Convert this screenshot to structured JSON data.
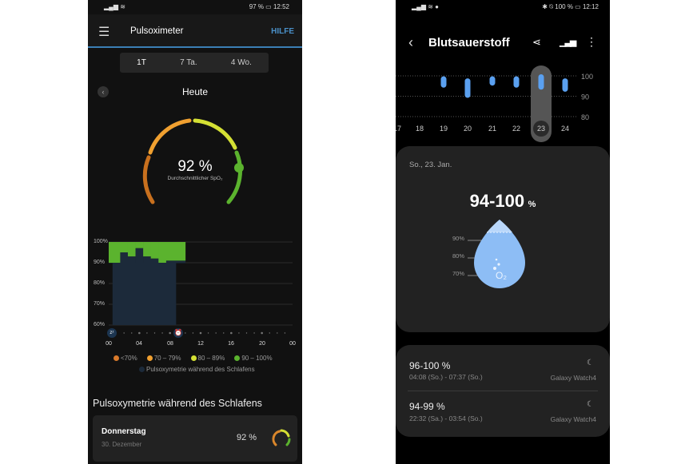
{
  "left": {
    "status": {
      "icons": "signal-wifi",
      "battery": "97 %",
      "time": "12:52"
    },
    "header": {
      "title": "Pulsoximeter",
      "help": "HILFE"
    },
    "tabs": [
      "1T",
      "7 Ta.",
      "4 Wo."
    ],
    "day": "Heute",
    "gauge": {
      "value": "92 %",
      "label": "Durchschnittlicher SpO₂"
    },
    "chart_data": {
      "type": "area",
      "yticks": [
        "100%",
        "90%",
        "80%",
        "70%",
        "60%"
      ],
      "ylim": [
        60,
        100
      ],
      "xticks": [
        "00",
        "04",
        "08",
        "12",
        "16",
        "20",
        "00"
      ],
      "segments": [
        {
          "from": 0,
          "to": 1.5,
          "min": 90,
          "max": 100
        },
        {
          "from": 1.5,
          "to": 2.5,
          "min": 95,
          "max": 100
        },
        {
          "from": 2.5,
          "to": 3.5,
          "min": 93,
          "max": 100
        },
        {
          "from": 3.5,
          "to": 4.5,
          "min": 97,
          "max": 100
        },
        {
          "from": 4.5,
          "to": 5.5,
          "min": 93,
          "max": 100
        },
        {
          "from": 5.5,
          "to": 6.5,
          "min": 92,
          "max": 100
        },
        {
          "from": 6.5,
          "to": 7.5,
          "min": 90,
          "max": 100
        },
        {
          "from": 7.5,
          "to": 10,
          "min": 91,
          "max": 100
        }
      ],
      "sleep": {
        "from": 0.5,
        "to": 8.8
      },
      "legend": [
        {
          "label": "<70%",
          "color": "#d97a2b"
        },
        {
          "label": "70 – 79%",
          "color": "#f0a030"
        },
        {
          "label": "80 – 89%",
          "color": "#d4e034"
        },
        {
          "label": "90 – 100%",
          "color": "#5bb32e"
        }
      ],
      "sleep_legend": "Pulsoxymetrie während des Schlafens"
    },
    "section_title": "Pulsoxymetrie während des Schlafens",
    "entry": {
      "day": "Donnerstag",
      "date": "30. Dezember",
      "value": "92 %"
    }
  },
  "right": {
    "status": {
      "icons": "signal-wifi-app",
      "right_icons": "bluetooth-mute",
      "battery": "100 %",
      "time": "12:12"
    },
    "header": {
      "title": "Blutsauerstoff"
    },
    "chart_data": {
      "type": "range-bar",
      "days": [
        "17",
        "18",
        "19",
        "20",
        "21",
        "22",
        "23",
        "24"
      ],
      "ranges": [
        null,
        null,
        [
          95,
          99
        ],
        [
          90,
          98
        ],
        [
          96,
          99
        ],
        [
          95,
          99
        ],
        [
          94,
          100
        ],
        [
          93,
          98
        ]
      ],
      "yticks": [
        "100",
        "90",
        "80"
      ],
      "selected": "23"
    },
    "summary": {
      "date": "So., 23. Jan.",
      "range": "94-100",
      "unit": "%",
      "drop_ticks": [
        "90%",
        "80%",
        "70%"
      ]
    },
    "sessions": [
      {
        "range": "96-100 %",
        "time": "04:08 (So.) - 07:37 (So.)",
        "device": "Galaxy Watch4"
      },
      {
        "range": "94-99 %",
        "time": "22:32 (Sa.) - 03:54 (So.)",
        "device": "Galaxy Watch4"
      }
    ],
    "accent": "#5aa0f0"
  }
}
